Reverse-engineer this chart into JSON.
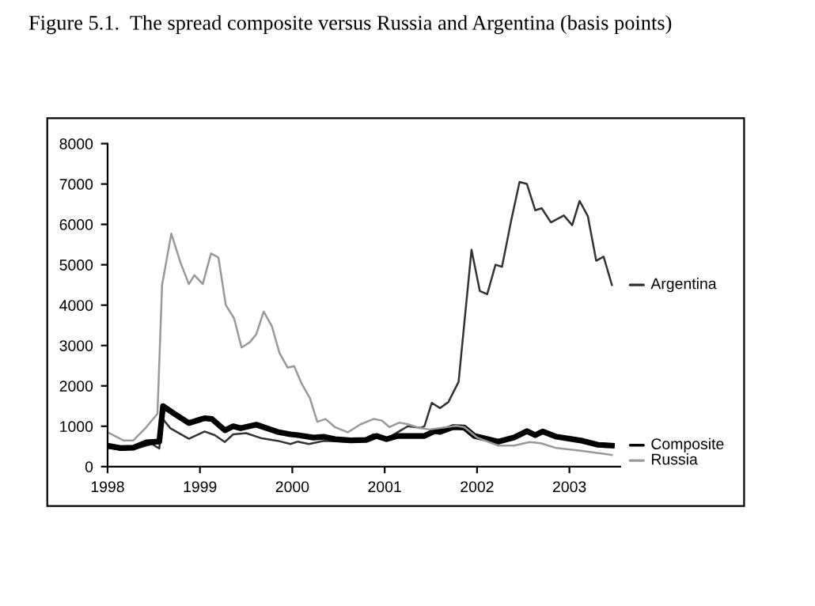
{
  "chart_data": {
    "type": "line",
    "title": "Figure 5.1.  The spread composite versus Russia and Argentina (basis points)",
    "xlim": [
      1998,
      2003.55
    ],
    "xticks": [
      1998,
      1999,
      2000,
      2001,
      2002,
      2003
    ],
    "ylim": [
      0,
      8000
    ],
    "yticks": [
      0,
      1000,
      2000,
      3000,
      4000,
      5000,
      6000,
      7000,
      8000
    ],
    "grid": false,
    "legend": "right",
    "marker": "none",
    "line_style": "solid",
    "series": [
      {
        "name": "Argentina",
        "color": "#333333",
        "x": [
          1998.0,
          1998.17,
          1998.31,
          1998.48,
          1998.56,
          1998.59,
          1998.68,
          1998.88,
          1999.05,
          1999.16,
          1999.27,
          1999.36,
          1999.5,
          1999.67,
          1999.84,
          1999.98,
          2000.06,
          2000.18,
          2000.34,
          2000.57,
          2000.74,
          2000.88,
          2001.02,
          2001.14,
          2001.25,
          2001.39,
          2001.43,
          2001.51,
          2001.6,
          2001.69,
          2001.8,
          2001.94,
          2002.03,
          2002.11,
          2002.2,
          2002.27,
          2002.37,
          2002.46,
          2002.54,
          2002.63,
          2002.7,
          2002.8,
          2002.94,
          2003.03,
          2003.11,
          2003.2,
          2003.29,
          2003.37,
          2003.46
        ],
        "values": [
          460,
          420,
          450,
          560,
          450,
          1200,
          950,
          690,
          870,
          780,
          610,
          800,
          830,
          700,
          640,
          560,
          620,
          560,
          640,
          620,
          640,
          800,
          690,
          850,
          1000,
          960,
          1000,
          1580,
          1450,
          1600,
          2100,
          5370,
          4350,
          4270,
          5000,
          4950,
          6100,
          7050,
          7000,
          6350,
          6400,
          6050,
          6220,
          5980,
          6580,
          6200,
          5100,
          5200,
          4500
        ]
      },
      {
        "name": "Composite",
        "color": "#000000",
        "x": [
          1998.0,
          1998.14,
          1998.28,
          1998.42,
          1998.56,
          1998.6,
          1998.71,
          1998.88,
          1999.05,
          1999.13,
          1999.27,
          1999.36,
          1999.44,
          1999.61,
          1999.84,
          1999.98,
          2000.06,
          2000.23,
          2000.34,
          2000.46,
          2000.63,
          2000.8,
          2000.91,
          2001.02,
          2001.14,
          2001.39,
          2001.43,
          2001.54,
          2001.6,
          2001.74,
          2001.86,
          2001.97,
          2002.23,
          2002.4,
          2002.54,
          2002.63,
          2002.71,
          2002.86,
          2003.14,
          2003.31,
          2003.46
        ],
        "values": [
          520,
          460,
          470,
          600,
          620,
          1500,
          1330,
          1080,
          1200,
          1180,
          900,
          1000,
          950,
          1040,
          860,
          800,
          780,
          720,
          740,
          680,
          650,
          660,
          760,
          680,
          760,
          760,
          760,
          880,
          860,
          980,
          970,
          760,
          620,
          720,
          880,
          780,
          870,
          740,
          640,
          540,
          520
        ]
      },
      {
        "name": "Russia",
        "color": "#999999",
        "x": [
          1998.0,
          1998.17,
          1998.28,
          1998.42,
          1998.54,
          1998.59,
          1998.69,
          1998.79,
          1998.88,
          1998.94,
          1999.03,
          1999.12,
          1999.2,
          1999.28,
          1999.37,
          1999.45,
          1999.54,
          1999.61,
          1999.69,
          1999.78,
          1999.86,
          1999.95,
          2000.02,
          2000.1,
          2000.19,
          2000.27,
          2000.36,
          2000.46,
          2000.6,
          2000.74,
          2000.88,
          2000.97,
          2001.05,
          2001.16,
          2001.25,
          2001.39,
          2001.49,
          2001.77,
          2001.86,
          2002.0,
          2002.23,
          2002.4,
          2002.57,
          2002.69,
          2002.86,
          2003.14,
          2003.46
        ],
        "values": [
          850,
          650,
          650,
          980,
          1310,
          4500,
          5770,
          5050,
          4520,
          4740,
          4520,
          5280,
          5180,
          4000,
          3670,
          2950,
          3080,
          3280,
          3840,
          3470,
          2820,
          2450,
          2490,
          2060,
          1700,
          1110,
          1180,
          980,
          850,
          1050,
          1180,
          1140,
          980,
          1090,
          1050,
          950,
          920,
          1010,
          980,
          720,
          520,
          520,
          610,
          580,
          460,
          390,
          290
        ]
      }
    ]
  }
}
